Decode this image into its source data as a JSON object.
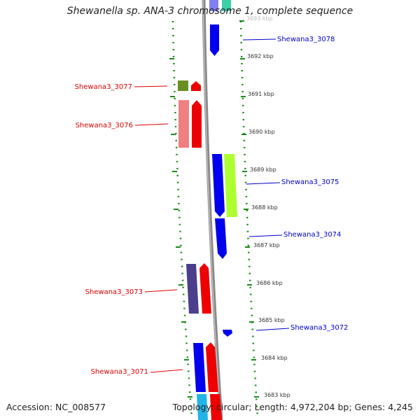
{
  "title": "Shewanella sp. ANA-3 chromosome 1, complete sequence",
  "accession": "Accession: NC_008577",
  "topology": "Topology: circular; Length: 4,972,204 bp; Genes: 4,245",
  "colors": {
    "dots": "#1a8a1a",
    "backbone": "#8c8c8c",
    "forward_label": "#0000cc",
    "reverse_label": "#dd0000",
    "scale_text": "#333333"
  },
  "scale_labels": [
    "3693 kbp",
    "3692 kbp",
    "3691 kbp",
    "3690 kbp",
    "3689 kbp",
    "3688 kbp",
    "3687 kbp",
    "3686 kbp",
    "3685 kbp",
    "3684 kbp",
    "3683 kbp"
  ],
  "forward_genes": [
    {
      "label": "Shewana3_3078",
      "color": "#0000ee"
    },
    {
      "label": "Shewana3_3075",
      "color": "#0000ee"
    },
    {
      "label": "Shewana3_3074",
      "color": "#0000ee"
    },
    {
      "label": "Shewana3_3072",
      "color": "#0000ee"
    }
  ],
  "reverse_genes": [
    {
      "label": "Shewana3_3077",
      "color": "#ee0000"
    },
    {
      "label": "Shewana3_3076",
      "color": "#ee0000"
    },
    {
      "label": "Shewana3_3073",
      "color": "#ee0000"
    },
    {
      "label": "Shewana3_3071",
      "color": "#ee0000"
    }
  ]
}
